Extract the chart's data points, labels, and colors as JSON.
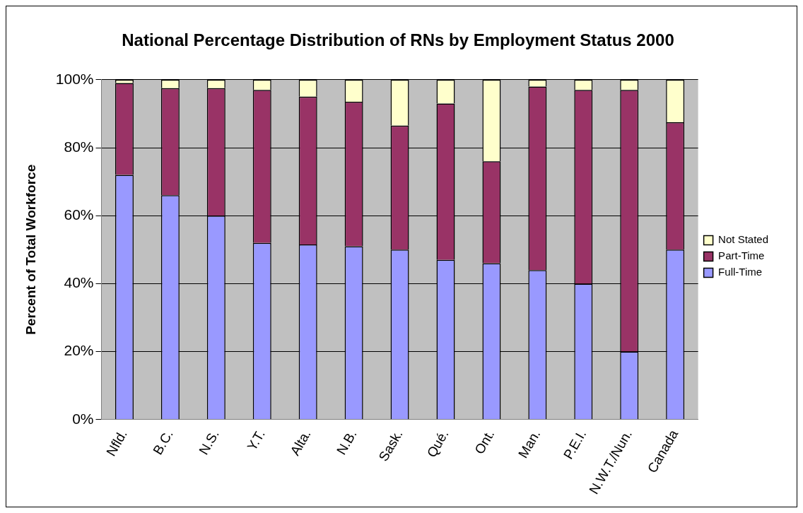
{
  "chart_data": {
    "type": "bar",
    "title": "National Percentage Distribution of RNs by Employment Status 2000",
    "ylabel": "Percent of Total Workforce",
    "categories": [
      "Nfld.",
      "B.C.",
      "N.S.",
      "Y.T.",
      "Alta.",
      "N.B.",
      "Sask.",
      "Qué.",
      "Ont.",
      "Man.",
      "P.E.I.",
      "N.W.T./Nun.",
      "Canada"
    ],
    "series": [
      {
        "name": "Full-Time",
        "color": "#9999ff",
        "values": [
          72,
          66,
          60,
          52,
          51.5,
          51,
          50,
          47,
          46,
          44,
          40,
          20,
          50
        ]
      },
      {
        "name": "Part-Time",
        "color": "#993366",
        "values": [
          27,
          31.5,
          37.5,
          45,
          43.5,
          42.5,
          36.5,
          46,
          30,
          54,
          57,
          77,
          37.5
        ]
      },
      {
        "name": "Not Stated",
        "color": "#ffffcc",
        "values": [
          1,
          2.5,
          2.5,
          3,
          5,
          6.5,
          13.5,
          7,
          24,
          2,
          3,
          3,
          12.5
        ]
      }
    ],
    "stacked": true,
    "ylim": [
      0,
      100
    ],
    "yticks": [
      {
        "value": 0,
        "label": "0%"
      },
      {
        "value": 20,
        "label": "20%"
      },
      {
        "value": 40,
        "label": "40%"
      },
      {
        "value": 60,
        "label": "60%"
      },
      {
        "value": 80,
        "label": "80%"
      },
      {
        "value": 100,
        "label": "100%"
      }
    ],
    "grid": "y",
    "legend": "right"
  }
}
